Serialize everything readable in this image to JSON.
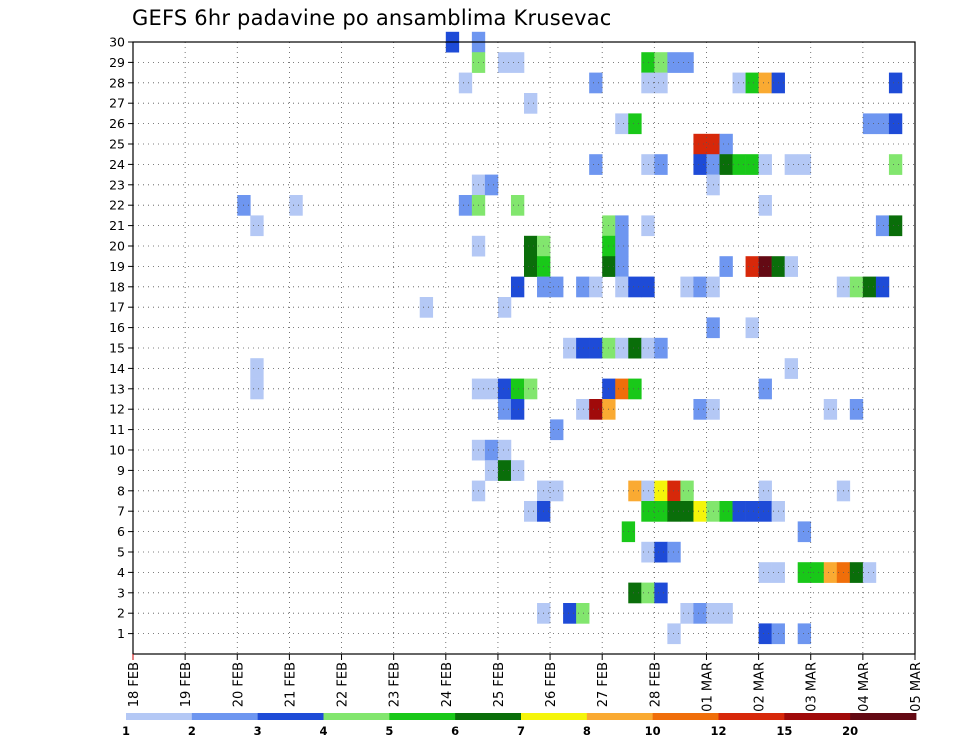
{
  "chart_data": {
    "type": "heatmap",
    "title": "GEFS 6hr padavine po ansamblima Krusevac",
    "y_ticks": [
      "1",
      "2",
      "3",
      "4",
      "5",
      "6",
      "7",
      "8",
      "9",
      "10",
      "11",
      "12",
      "13",
      "14",
      "15",
      "16",
      "17",
      "18",
      "19",
      "20",
      "21",
      "22",
      "23",
      "24",
      "25",
      "26",
      "27",
      "28",
      "29",
      "30"
    ],
    "x_ticks": [
      "18 FEB",
      "19 FEB",
      "20 FEB",
      "21 FEB",
      "22 FEB",
      "23 FEB",
      "24 FEB",
      "25 FEB",
      "26 FEB",
      "27 FEB",
      "28 FEB",
      "01 MAR",
      "02 MAR",
      "03 MAR",
      "04 MAR",
      "05 MAR"
    ],
    "grid": true,
    "legend_position": "bottom",
    "legend_labels": [
      "1",
      "2",
      "3",
      "4",
      "5",
      "6",
      "7",
      "8",
      "10",
      "12",
      "15",
      "20"
    ],
    "colors": [
      "#b4c8f5",
      "#6e96f0",
      "#1e4bd7",
      "#82e66e",
      "#19c819",
      "#0a6e0a",
      "#f5f50a",
      "#faaa32",
      "#f06e0a",
      "#d7280a",
      "#a00a0a",
      "#640a14"
    ],
    "cells": [
      [
        30,
        24.0,
        2
      ],
      [
        30,
        24.5,
        1
      ],
      [
        29,
        24.5,
        3
      ],
      [
        29,
        25.0,
        0
      ],
      [
        29,
        25.25,
        0
      ],
      [
        29,
        27.75,
        4
      ],
      [
        29,
        28.0,
        3
      ],
      [
        29,
        28.25,
        1
      ],
      [
        29,
        28.5,
        1
      ],
      [
        28,
        24.25,
        0
      ],
      [
        28,
        26.75,
        1
      ],
      [
        28,
        27.75,
        0
      ],
      [
        28,
        28.0,
        0
      ],
      [
        28,
        29.5,
        0
      ],
      [
        28,
        29.75,
        4
      ],
      [
        28,
        30.0,
        7
      ],
      [
        28,
        30.25,
        2
      ],
      [
        28,
        32.5,
        2
      ],
      [
        27,
        25.5,
        0
      ],
      [
        26,
        27.25,
        0
      ],
      [
        26,
        27.5,
        4
      ],
      [
        26,
        32.0,
        1
      ],
      [
        26,
        32.25,
        1
      ],
      [
        26,
        32.5,
        2
      ],
      [
        25,
        28.75,
        9
      ],
      [
        25,
        29.0,
        9
      ],
      [
        25,
        29.25,
        1
      ],
      [
        24,
        26.75,
        1
      ],
      [
        24,
        27.75,
        0
      ],
      [
        24,
        28.0,
        1
      ],
      [
        24,
        28.75,
        2
      ],
      [
        24,
        29.0,
        1
      ],
      [
        24,
        29.25,
        5
      ],
      [
        24,
        29.5,
        4
      ],
      [
        24,
        29.75,
        4
      ],
      [
        24,
        30.0,
        0
      ],
      [
        24,
        30.5,
        0
      ],
      [
        24,
        30.75,
        0
      ],
      [
        24,
        32.5,
        3
      ],
      [
        23,
        24.5,
        0
      ],
      [
        23,
        24.75,
        1
      ],
      [
        23,
        29.0,
        0
      ],
      [
        22,
        20.0,
        1
      ],
      [
        22,
        21.0,
        0
      ],
      [
        22,
        24.25,
        1
      ],
      [
        22,
        24.5,
        3
      ],
      [
        22,
        25.25,
        3
      ],
      [
        22,
        30.0,
        0
      ],
      [
        21,
        20.25,
        0
      ],
      [
        21,
        27.0,
        3
      ],
      [
        21,
        27.25,
        1
      ],
      [
        21,
        27.75,
        0
      ],
      [
        21,
        32.25,
        1
      ],
      [
        21,
        32.5,
        5
      ],
      [
        20,
        24.5,
        0
      ],
      [
        20,
        25.5,
        5
      ],
      [
        20,
        25.75,
        3
      ],
      [
        20,
        27.0,
        4
      ],
      [
        20,
        27.25,
        1
      ],
      [
        19,
        25.5,
        5
      ],
      [
        19,
        25.75,
        4
      ],
      [
        19,
        27.0,
        5
      ],
      [
        19,
        27.25,
        1
      ],
      [
        19,
        29.25,
        1
      ],
      [
        19,
        29.75,
        9
      ],
      [
        19,
        30.0,
        11
      ],
      [
        19,
        30.25,
        5
      ],
      [
        19,
        30.5,
        0
      ],
      [
        18,
        25.25,
        2
      ],
      [
        18,
        25.75,
        1
      ],
      [
        18,
        26.0,
        1
      ],
      [
        18,
        26.5,
        1
      ],
      [
        18,
        26.75,
        0
      ],
      [
        18,
        27.25,
        0
      ],
      [
        18,
        27.5,
        2
      ],
      [
        18,
        27.75,
        2
      ],
      [
        18,
        28.5,
        0
      ],
      [
        18,
        28.75,
        1
      ],
      [
        18,
        29.0,
        0
      ],
      [
        18,
        31.5,
        0
      ],
      [
        18,
        31.75,
        3
      ],
      [
        18,
        32.0,
        5
      ],
      [
        18,
        32.25,
        2
      ],
      [
        17,
        23.5,
        0
      ],
      [
        17,
        25.0,
        0
      ],
      [
        16,
        29.0,
        1
      ],
      [
        16,
        29.75,
        0
      ],
      [
        15,
        26.25,
        0
      ],
      [
        15,
        26.5,
        2
      ],
      [
        15,
        26.75,
        2
      ],
      [
        15,
        27.0,
        3
      ],
      [
        15,
        27.25,
        0
      ],
      [
        15,
        27.5,
        5
      ],
      [
        15,
        27.75,
        0
      ],
      [
        15,
        28.0,
        1
      ],
      [
        14,
        20.25,
        0
      ],
      [
        14,
        30.5,
        0
      ],
      [
        13,
        20.25,
        0
      ],
      [
        13,
        24.5,
        0
      ],
      [
        13,
        24.75,
        0
      ],
      [
        13,
        25.0,
        2
      ],
      [
        13,
        25.25,
        4
      ],
      [
        13,
        25.5,
        3
      ],
      [
        13,
        27.0,
        2
      ],
      [
        13,
        27.25,
        8
      ],
      [
        13,
        27.5,
        4
      ],
      [
        13,
        30.0,
        1
      ],
      [
        12,
        25.0,
        1
      ],
      [
        12,
        25.25,
        2
      ],
      [
        12,
        26.5,
        0
      ],
      [
        12,
        26.75,
        10
      ],
      [
        12,
        27.0,
        7
      ],
      [
        12,
        28.75,
        1
      ],
      [
        12,
        29.0,
        0
      ],
      [
        12,
        31.25,
        0
      ],
      [
        12,
        31.75,
        1
      ],
      [
        11,
        26.0,
        1
      ],
      [
        10,
        24.5,
        0
      ],
      [
        10,
        24.75,
        1
      ],
      [
        10,
        25.0,
        0
      ],
      [
        9,
        24.75,
        0
      ],
      [
        9,
        25.0,
        5
      ],
      [
        9,
        25.25,
        0
      ],
      [
        8,
        24.5,
        0
      ],
      [
        8,
        25.75,
        0
      ],
      [
        8,
        26.0,
        0
      ],
      [
        8,
        27.5,
        7
      ],
      [
        8,
        27.75,
        0
      ],
      [
        8,
        28.0,
        6
      ],
      [
        8,
        28.25,
        9
      ],
      [
        8,
        28.5,
        3
      ],
      [
        8,
        30.0,
        0
      ],
      [
        8,
        31.5,
        0
      ],
      [
        7,
        25.5,
        0
      ],
      [
        7,
        25.75,
        2
      ],
      [
        7,
        27.75,
        4
      ],
      [
        7,
        28.0,
        4
      ],
      [
        7,
        28.25,
        5
      ],
      [
        7,
        28.5,
        5
      ],
      [
        7,
        28.75,
        6
      ],
      [
        7,
        29.0,
        3
      ],
      [
        7,
        29.25,
        4
      ],
      [
        7,
        29.5,
        2
      ],
      [
        7,
        29.75,
        2
      ],
      [
        7,
        30.0,
        2
      ],
      [
        7,
        30.25,
        0
      ],
      [
        6,
        27.375,
        4
      ],
      [
        6,
        30.75,
        1
      ],
      [
        5,
        27.75,
        0
      ],
      [
        5,
        28.0,
        2
      ],
      [
        5,
        28.25,
        1
      ],
      [
        4,
        30.0,
        0
      ],
      [
        4,
        30.25,
        0
      ],
      [
        4,
        30.75,
        4
      ],
      [
        4,
        31.0,
        4
      ],
      [
        4,
        31.25,
        7
      ],
      [
        4,
        31.5,
        8
      ],
      [
        4,
        31.75,
        5
      ],
      [
        4,
        32.0,
        0
      ],
      [
        3,
        27.5,
        5
      ],
      [
        3,
        27.75,
        3
      ],
      [
        3,
        28.0,
        2
      ],
      [
        2,
        25.75,
        0
      ],
      [
        2,
        26.25,
        2
      ],
      [
        2,
        26.5,
        3
      ],
      [
        2,
        28.5,
        0
      ],
      [
        2,
        28.75,
        1
      ],
      [
        2,
        29.0,
        0
      ],
      [
        2,
        29.25,
        0
      ],
      [
        1,
        28.25,
        0
      ],
      [
        1,
        30.0,
        2
      ],
      [
        1,
        30.25,
        1
      ],
      [
        1,
        30.75,
        1
      ]
    ]
  }
}
